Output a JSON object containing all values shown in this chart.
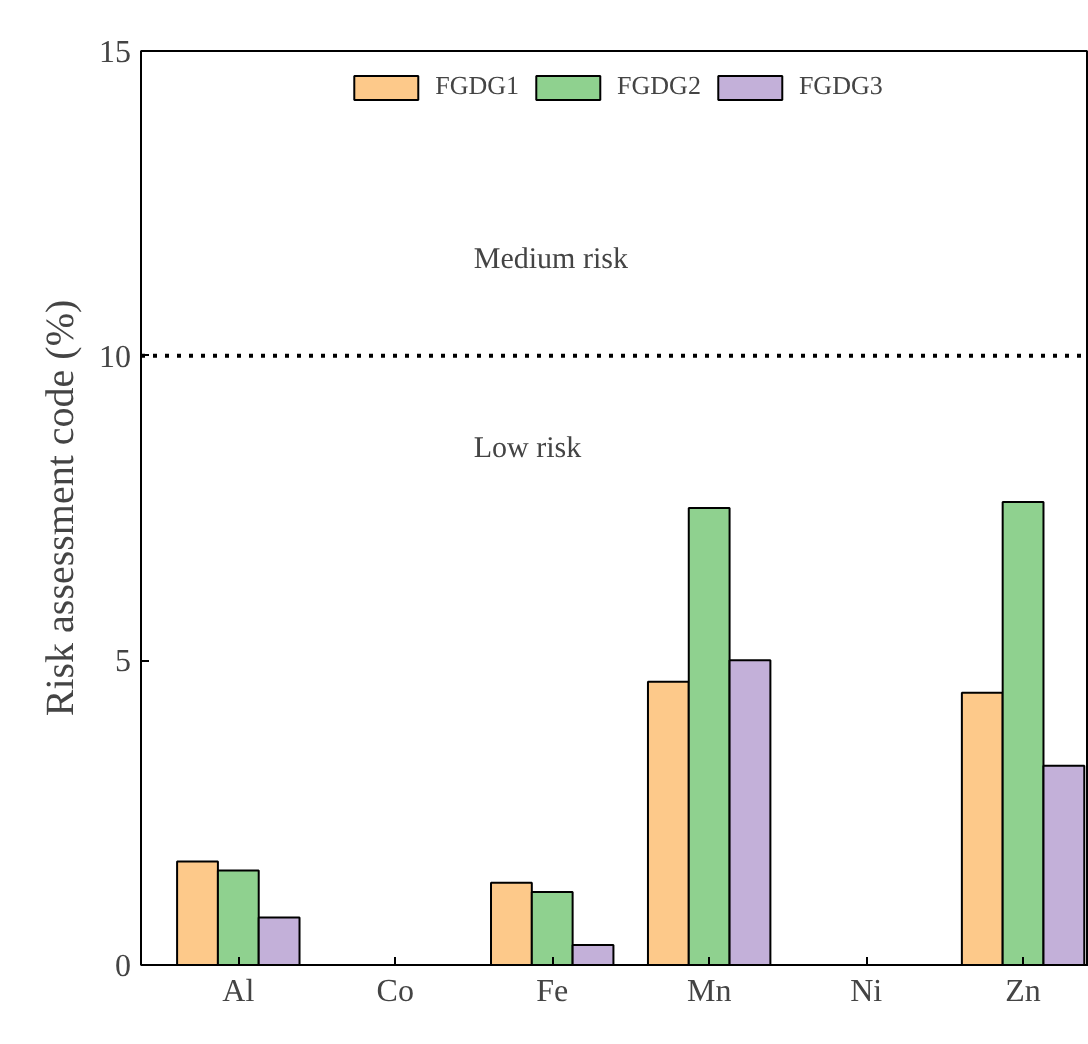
{
  "chart_data": {
    "type": "bar",
    "ylabel": "Risk assessment code (%)",
    "categories": [
      "Al",
      "Co",
      "Fe",
      "Mn",
      "Ni",
      "Zn"
    ],
    "series": [
      {
        "name": "FGDG1",
        "color": "#fdc98a",
        "values": [
          1.7,
          0,
          1.35,
          4.65,
          0,
          4.47
        ]
      },
      {
        "name": "FGDG2",
        "color": "#8fd18f",
        "values": [
          1.55,
          0,
          1.2,
          7.5,
          0,
          7.6
        ]
      },
      {
        "name": "FGDG3",
        "color": "#c3b0d9",
        "values": [
          0.78,
          0,
          0.33,
          5.0,
          0,
          3.27
        ]
      }
    ],
    "ylim": [
      0,
      15
    ],
    "yticks": [
      0,
      5,
      10,
      15
    ],
    "ref_lines": [
      {
        "axis": "y",
        "value": 10,
        "line_style": "dotted",
        "color": "#000000"
      }
    ],
    "annotations": [
      "Medium risk",
      "Low risk"
    ],
    "legend": "top",
    "grid": false
  }
}
